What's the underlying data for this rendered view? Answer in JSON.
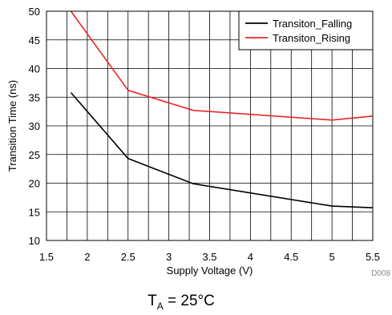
{
  "chart_data": {
    "type": "line",
    "title": "",
    "xlabel": "Supply Voltage (V)",
    "ylabel": "Transition Time (ns)",
    "xlim": [
      1.5,
      5.5
    ],
    "ylim": [
      10,
      50
    ],
    "xticks": [
      1.5,
      2,
      2.5,
      3,
      3.5,
      4,
      4.5,
      5,
      5.5
    ],
    "yticks": [
      10,
      15,
      20,
      25,
      30,
      35,
      40,
      45,
      50
    ],
    "xtick_labels": [
      "1.5",
      "2",
      "2.5",
      "3",
      "3.5",
      "4",
      "4.5",
      "5",
      "5.5"
    ],
    "ytick_labels": [
      "10",
      "15",
      "20",
      "25",
      "30",
      "35",
      "40",
      "45",
      "50"
    ],
    "x_minor_step": 0.25,
    "grid": true,
    "legend_position": "top-right",
    "series": [
      {
        "name": "Transiton_Falling",
        "color": "#000000",
        "points": [
          [
            1.8,
            35.8
          ],
          [
            2.5,
            24.3
          ],
          [
            3.3,
            19.9
          ],
          [
            5.0,
            16.0
          ],
          [
            5.5,
            15.7
          ]
        ]
      },
      {
        "name": "Transiton_Rising",
        "color": "#e8262a",
        "points": [
          [
            1.8,
            50.0
          ],
          [
            2.5,
            36.2
          ],
          [
            3.3,
            32.7
          ],
          [
            5.0,
            31.0
          ],
          [
            5.5,
            31.7
          ]
        ]
      }
    ]
  },
  "figure_code": "D008",
  "caption": {
    "symbol": "T",
    "subscript": "A",
    "rest": " = 25°C"
  }
}
